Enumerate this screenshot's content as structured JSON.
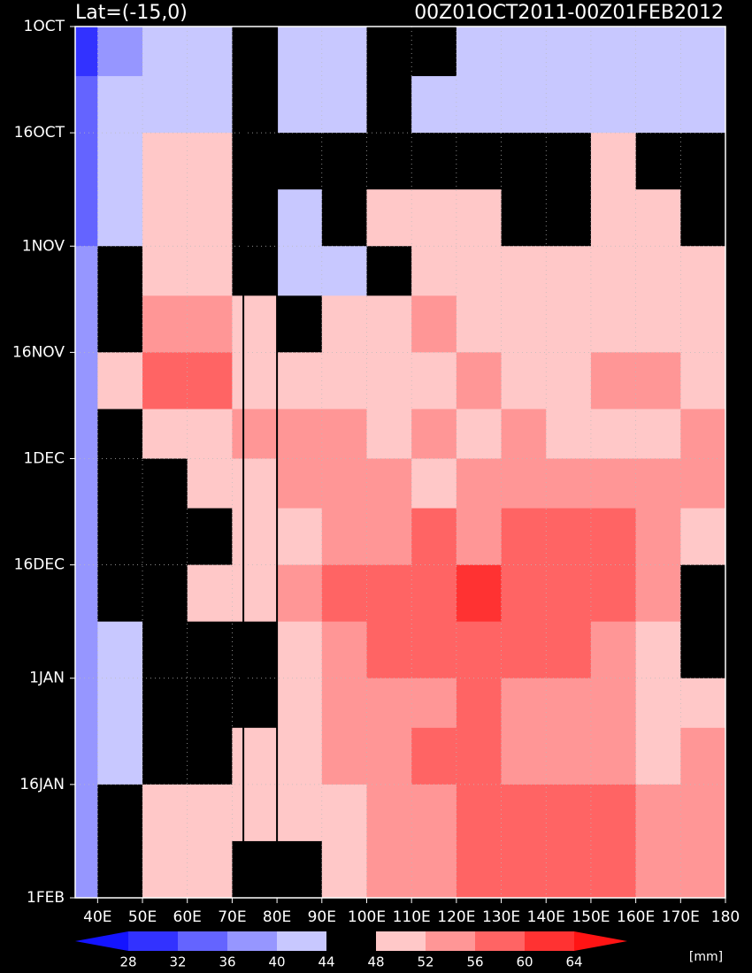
{
  "chart_data": {
    "type": "heatmap",
    "title": "Lat=(-15,0)",
    "subtitle": "00Z01OCT2011-00Z01FEB2012",
    "x_bins": [
      35,
      40,
      50,
      60,
      70,
      80,
      90,
      100,
      110,
      120,
      130,
      140,
      150,
      160,
      170,
      180
    ],
    "y_bins": [
      "2011-10-01",
      "2011-10-08",
      "2011-10-16",
      "2011-10-24",
      "2011-11-01",
      "2011-11-08",
      "2011-11-16",
      "2011-11-24",
      "2011-12-01",
      "2011-12-08",
      "2011-12-16",
      "2011-12-24",
      "2012-01-01",
      "2012-01-08",
      "2012-01-16",
      "2012-01-24",
      "2012-02-01"
    ],
    "z": [
      [
        30,
        38,
        42,
        41,
        44,
        42,
        42,
        44,
        46,
        42,
        41,
        42,
        43,
        42,
        40
      ],
      [
        32,
        40,
        43,
        42,
        45,
        42,
        43,
        46,
        42,
        41,
        43,
        42,
        41,
        42,
        43
      ],
      [
        34,
        42,
        49,
        50,
        46,
        45,
        47,
        45,
        47,
        46,
        44,
        46,
        48,
        45,
        45
      ],
      [
        35,
        43,
        48,
        50,
        44,
        41,
        44,
        48,
        50,
        49,
        46,
        45,
        48,
        49,
        47
      ],
      [
        36,
        44,
        49,
        50,
        47,
        41,
        43,
        45,
        49,
        50,
        49,
        50,
        48,
        50,
        49
      ],
      [
        38,
        47,
        53,
        52,
        49,
        46,
        49,
        50,
        52,
        50,
        49,
        50,
        51,
        49,
        50
      ],
      [
        38,
        48,
        57,
        58,
        51,
        50,
        51,
        50,
        51,
        52,
        51,
        50,
        53,
        52,
        51
      ],
      [
        38,
        46,
        50,
        50,
        52,
        53,
        52,
        51,
        52,
        51,
        52,
        51,
        50,
        51,
        52
      ],
      [
        38,
        44,
        47,
        48,
        49,
        52,
        54,
        53,
        50,
        54,
        55,
        54,
        55,
        54,
        53
      ],
      [
        38,
        44,
        46,
        47,
        49,
        50,
        52,
        55,
        56,
        55,
        57,
        56,
        56,
        54,
        50
      ],
      [
        38,
        44,
        47,
        48,
        50,
        52,
        56,
        57,
        58,
        60,
        59,
        58,
        56,
        52,
        45
      ],
      [
        38,
        43,
        44,
        45,
        47,
        50,
        54,
        56,
        57,
        58,
        57,
        56,
        54,
        50,
        46
      ],
      [
        38,
        43,
        44,
        45,
        46,
        51,
        53,
        54,
        55,
        56,
        55,
        54,
        52,
        50,
        48
      ],
      [
        38,
        42,
        45,
        47,
        48,
        50,
        52,
        54,
        56,
        56,
        55,
        54,
        53,
        51,
        52
      ],
      [
        38,
        46,
        49,
        50,
        51,
        48,
        51,
        53,
        55,
        57,
        59,
        58,
        56,
        53,
        52
      ],
      [
        36,
        45,
        50,
        49,
        46,
        45,
        50,
        52,
        55,
        56,
        58,
        57,
        56,
        54,
        53
      ]
    ],
    "xlim": [
      35,
      180
    ],
    "ylim": [
      "2011-10-01",
      "2012-02-01"
    ],
    "xticks": [
      {
        "value": 40,
        "label": "40E"
      },
      {
        "value": 50,
        "label": "50E"
      },
      {
        "value": 60,
        "label": "60E"
      },
      {
        "value": 70,
        "label": "70E"
      },
      {
        "value": 80,
        "label": "80E"
      },
      {
        "value": 90,
        "label": "90E"
      },
      {
        "value": 100,
        "label": "100E"
      },
      {
        "value": 110,
        "label": "110E"
      },
      {
        "value": 120,
        "label": "120E"
      },
      {
        "value": 130,
        "label": "130E"
      },
      {
        "value": 140,
        "label": "140E"
      },
      {
        "value": 150,
        "label": "150E"
      },
      {
        "value": 160,
        "label": "160E"
      },
      {
        "value": 170,
        "label": "170E"
      },
      180
    ],
    "yticks": [
      {
        "value": "2011-10-01",
        "label": "1OCT"
      },
      {
        "value": "2011-10-16",
        "label": "16OCT"
      },
      {
        "value": "2011-11-01",
        "label": "1NOV"
      },
      {
        "value": "2011-11-16",
        "label": "16NOV"
      },
      {
        "value": "2011-12-01",
        "label": "1DEC"
      },
      {
        "value": "2011-12-16",
        "label": "16DEC"
      },
      {
        "value": "2012-01-01",
        "label": "1JAN"
      },
      {
        "value": "2012-01-16",
        "label": "16JAN"
      },
      {
        "value": "2012-02-01",
        "label": "1FEB"
      }
    ],
    "grid": true,
    "vlines": [
      72.5,
      80
    ],
    "levels": [
      28,
      32,
      36,
      40,
      44,
      48,
      52,
      56,
      60,
      64
    ],
    "colors": [
      "#1414ff",
      "#3232ff",
      "#6464ff",
      "#9696ff",
      "#c8c8ff",
      "#000000",
      "#ffc8c8",
      "#ff9696",
      "#ff6464",
      "#ff3232",
      "#ff1414"
    ],
    "colorbar_label": "[mm]"
  }
}
